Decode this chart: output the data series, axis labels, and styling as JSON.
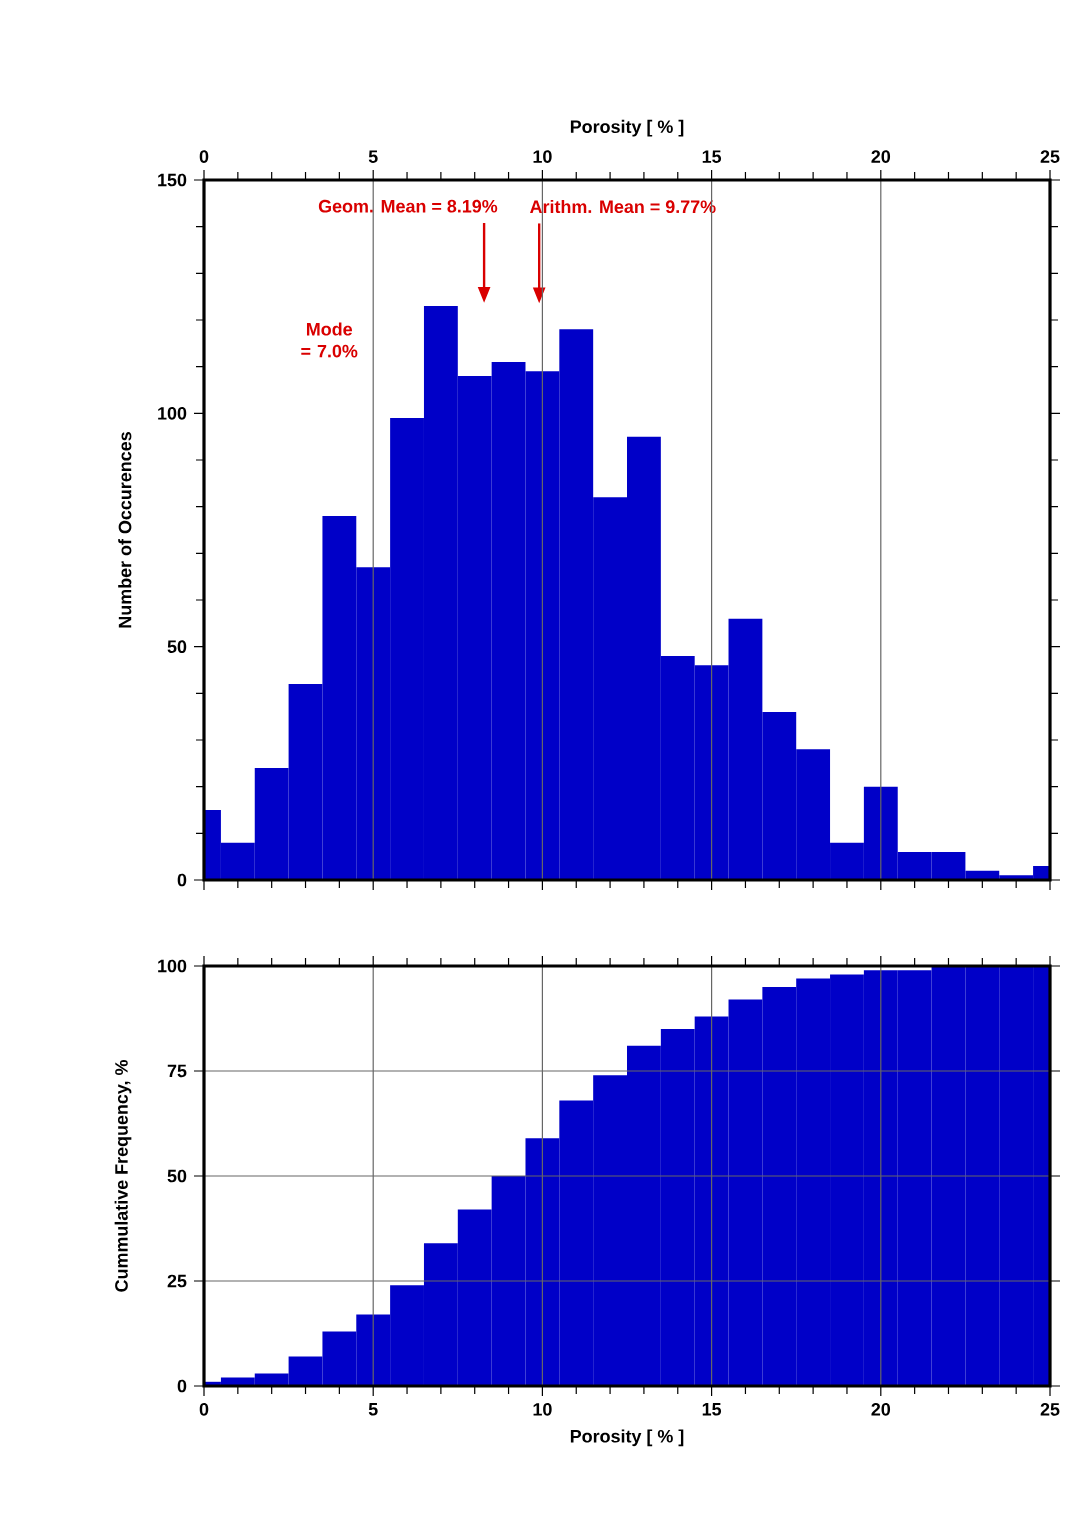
{
  "chart_data": [
    {
      "type": "histogram",
      "xlabel": "Porosity [ % ]",
      "ylabel": "Number of Occurences",
      "color": "#0000c8",
      "bins": [
        0,
        0.5,
        1.5,
        2.5,
        3.5,
        4.5,
        5.5,
        6.5,
        7.5,
        8.5,
        9.5,
        10.5,
        11.5,
        12.5,
        13.5,
        14.5,
        15.5,
        16.5,
        17.5,
        18.5,
        19.5,
        20.5,
        21.5,
        22.5,
        23.5,
        24.5,
        25
      ],
      "values": [
        15,
        8,
        24,
        42,
        78,
        67,
        99,
        123,
        108,
        111,
        109,
        118,
        82,
        95,
        48,
        46,
        56,
        36,
        28,
        8,
        20,
        6,
        6,
        2,
        1,
        3
      ],
      "xlim": [
        0,
        25
      ],
      "xticks": [
        0,
        5,
        10,
        15,
        20,
        25
      ],
      "ylim": [
        0,
        150
      ],
      "yticks": [
        0,
        50,
        100,
        150
      ],
      "grid": "x",
      "annotations": [
        "Geom. Mean = 8.19%",
        "Arithm. Mean = 9.77%",
        "Mode = 7.0%"
      ]
    },
    {
      "type": "histogram",
      "xlabel": "Porosity [ % ]",
      "ylabel": "Cummulative Frequency, %",
      "color": "#0000c8",
      "bins": [
        0,
        0.5,
        1.5,
        2.5,
        3.5,
        4.5,
        5.5,
        6.5,
        7.5,
        8.5,
        9.5,
        10.5,
        11.5,
        12.5,
        13.5,
        14.5,
        15.5,
        16.5,
        17.5,
        18.5,
        19.5,
        20.5,
        21.5,
        22.5,
        23.5,
        24.5,
        25
      ],
      "values": [
        1,
        2,
        3,
        7,
        13,
        17,
        24,
        34,
        42,
        50,
        59,
        68,
        74,
        81,
        85,
        88,
        92,
        95,
        97,
        98,
        99,
        99,
        100,
        100,
        100,
        100
      ],
      "xlim": [
        0,
        25
      ],
      "xticks": [
        0,
        5,
        10,
        15,
        20,
        25
      ],
      "ylim": [
        0,
        100
      ],
      "yticks": [
        0,
        25,
        50,
        75,
        100
      ],
      "grid": true
    }
  ]
}
